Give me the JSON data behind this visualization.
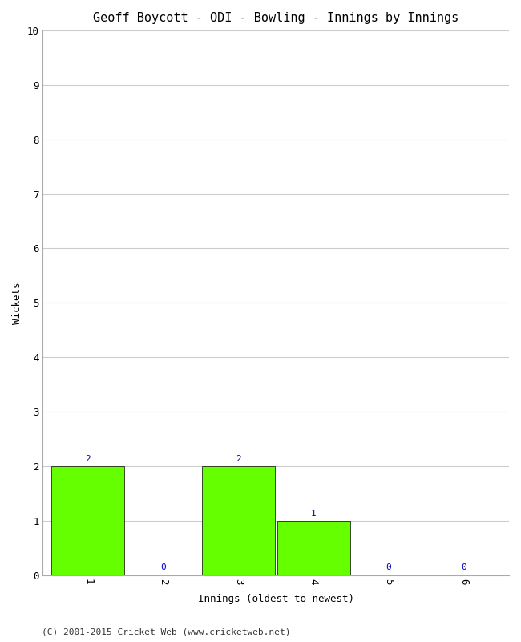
{
  "title": "Geoff Boycott - ODI - Bowling - Innings by Innings",
  "xlabel": "Innings (oldest to newest)",
  "ylabel": "Wickets",
  "categories": [
    1,
    2,
    3,
    4,
    5,
    6
  ],
  "values": [
    2,
    0,
    2,
    1,
    0,
    0
  ],
  "bar_color": "#66ff00",
  "bar_edge_color": "#000000",
  "ylim": [
    0,
    10
  ],
  "yticks": [
    0,
    1,
    2,
    3,
    4,
    5,
    6,
    7,
    8,
    9,
    10
  ],
  "xticks": [
    1,
    2,
    3,
    4,
    5,
    6
  ],
  "annotation_color": "#0000cc",
  "background_color": "#ffffff",
  "grid_color": "#cccccc",
  "title_fontsize": 11,
  "label_fontsize": 9,
  "tick_fontsize": 9,
  "annotation_fontsize": 8,
  "footer": "(C) 2001-2015 Cricket Web (www.cricketweb.net)",
  "bar_width": 0.97
}
